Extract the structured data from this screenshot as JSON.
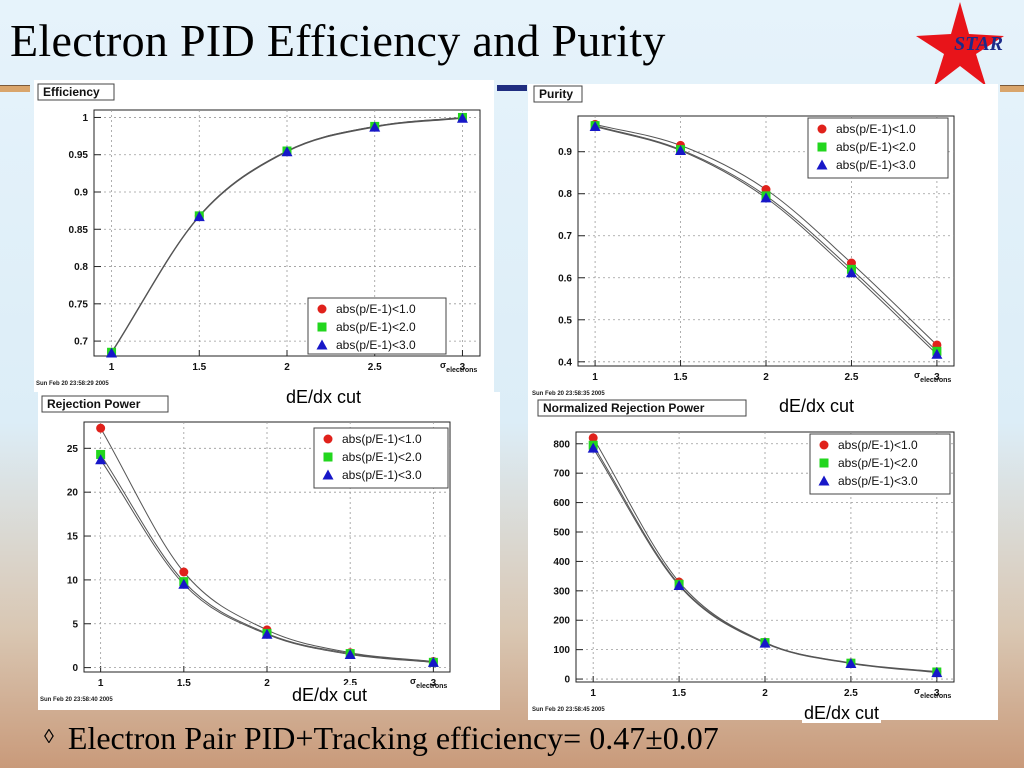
{
  "slide": {
    "title": "Electron PID Efficiency and Purity",
    "logo_text": "STAR",
    "bullet_glyph": "◊",
    "bullet_text": "Electron Pair PID+Tracking efficiency= 0.47±0.07",
    "colors": {
      "title_rule": "#d9a56b",
      "title_rule_accent": "#1f2d80",
      "logo_star": "#e8141a",
      "logo_text": "#1b2a8a"
    }
  },
  "chart_data": [
    {
      "type": "scatter",
      "title": "Efficiency",
      "x_axis_sigma": "σ",
      "x_axis_sub": "electrons",
      "x_caption": "dE/dx cut",
      "timestamp": "Sun Feb 20 23:58:29 2005",
      "xlim": [
        0.9,
        3.1
      ],
      "ylim": [
        0.68,
        1.01
      ],
      "xticks": [
        1,
        1.5,
        2,
        2.5,
        3
      ],
      "yticks": [
        0.7,
        0.75,
        0.8,
        0.85,
        0.9,
        0.95,
        1
      ],
      "grid": true,
      "legend_position": "bottom-right",
      "x": [
        1,
        1.5,
        2,
        2.5,
        3
      ],
      "series": [
        {
          "name": "abs(p/E-1)<1.0",
          "marker": "circle",
          "color": "#e0211b",
          "values": [
            0.685,
            0.868,
            0.955,
            0.988,
            1.0
          ]
        },
        {
          "name": "abs(p/E-1)<2.0",
          "marker": "square",
          "color": "#22d61e",
          "values": [
            0.685,
            0.868,
            0.955,
            0.988,
            1.0
          ]
        },
        {
          "name": "abs(p/E-1)<3.0",
          "marker": "triangle",
          "color": "#1717c8",
          "values": [
            0.684,
            0.867,
            0.954,
            0.987,
            0.999
          ]
        }
      ]
    },
    {
      "type": "scatter",
      "title": "Purity",
      "x_axis_sigma": "σ",
      "x_axis_sub": "electrons",
      "x_caption": "dE/dx cut",
      "timestamp": "Sun Feb 20 23:58:35 2005",
      "xlim": [
        0.9,
        3.1
      ],
      "ylim": [
        0.39,
        0.985
      ],
      "xticks": [
        1,
        1.5,
        2,
        2.5,
        3
      ],
      "yticks": [
        0.4,
        0.5,
        0.6,
        0.7,
        0.8,
        0.9
      ],
      "grid": true,
      "legend_position": "top-right",
      "x": [
        1,
        1.5,
        2,
        2.5,
        3
      ],
      "series": [
        {
          "name": "abs(p/E-1)<1.0",
          "marker": "circle",
          "color": "#e0211b",
          "values": [
            0.965,
            0.915,
            0.81,
            0.635,
            0.44
          ]
        },
        {
          "name": "abs(p/E-1)<2.0",
          "marker": "square",
          "color": "#22d61e",
          "values": [
            0.962,
            0.905,
            0.795,
            0.62,
            0.425
          ]
        },
        {
          "name": "abs(p/E-1)<3.0",
          "marker": "triangle",
          "color": "#1717c8",
          "values": [
            0.96,
            0.903,
            0.79,
            0.612,
            0.418
          ]
        }
      ]
    },
    {
      "type": "scatter",
      "title": "Rejection Power",
      "x_axis_sigma": "σ",
      "x_axis_sub": "electrons",
      "x_caption": "dE/dx cut",
      "timestamp": "Sun Feb 20 23:58:40 2005",
      "xlim": [
        0.9,
        3.1
      ],
      "ylim": [
        -0.5,
        28
      ],
      "xticks": [
        1,
        1.5,
        2,
        2.5,
        3
      ],
      "yticks": [
        0,
        5,
        10,
        15,
        20,
        25
      ],
      "grid": true,
      "legend_position": "top-right",
      "x": [
        1,
        1.5,
        2,
        2.5,
        3
      ],
      "series": [
        {
          "name": "abs(p/E-1)<1.0",
          "marker": "circle",
          "color": "#e0211b",
          "values": [
            27.3,
            10.9,
            4.3,
            1.7,
            0.7
          ]
        },
        {
          "name": "abs(p/E-1)<2.0",
          "marker": "square",
          "color": "#22d61e",
          "values": [
            24.3,
            9.8,
            3.9,
            1.6,
            0.6
          ]
        },
        {
          "name": "abs(p/E-1)<3.0",
          "marker": "triangle",
          "color": "#1717c8",
          "values": [
            23.7,
            9.5,
            3.8,
            1.5,
            0.6
          ]
        }
      ]
    },
    {
      "type": "scatter",
      "title": "Normalized Rejection Power",
      "x_axis_sigma": "σ",
      "x_axis_sub": "electrons",
      "x_caption": "dE/dx cut",
      "timestamp": "Sun Feb 20 23:58:45 2005",
      "xlim": [
        0.9,
        3.1
      ],
      "ylim": [
        -10,
        840
      ],
      "xticks": [
        1,
        1.5,
        2,
        2.5,
        3
      ],
      "yticks": [
        0,
        100,
        200,
        300,
        400,
        500,
        600,
        700,
        800
      ],
      "grid": true,
      "legend_position": "top-right",
      "x": [
        1,
        1.5,
        2,
        2.5,
        3
      ],
      "series": [
        {
          "name": "abs(p/E-1)<1.0",
          "marker": "circle",
          "color": "#e0211b",
          "values": [
            820,
            330,
            125,
            55,
            25
          ]
        },
        {
          "name": "abs(p/E-1)<2.0",
          "marker": "square",
          "color": "#22d61e",
          "values": [
            795,
            322,
            124,
            54,
            24
          ]
        },
        {
          "name": "abs(p/E-1)<3.0",
          "marker": "triangle",
          "color": "#1717c8",
          "values": [
            785,
            318,
            122,
            53,
            22
          ]
        }
      ]
    }
  ]
}
